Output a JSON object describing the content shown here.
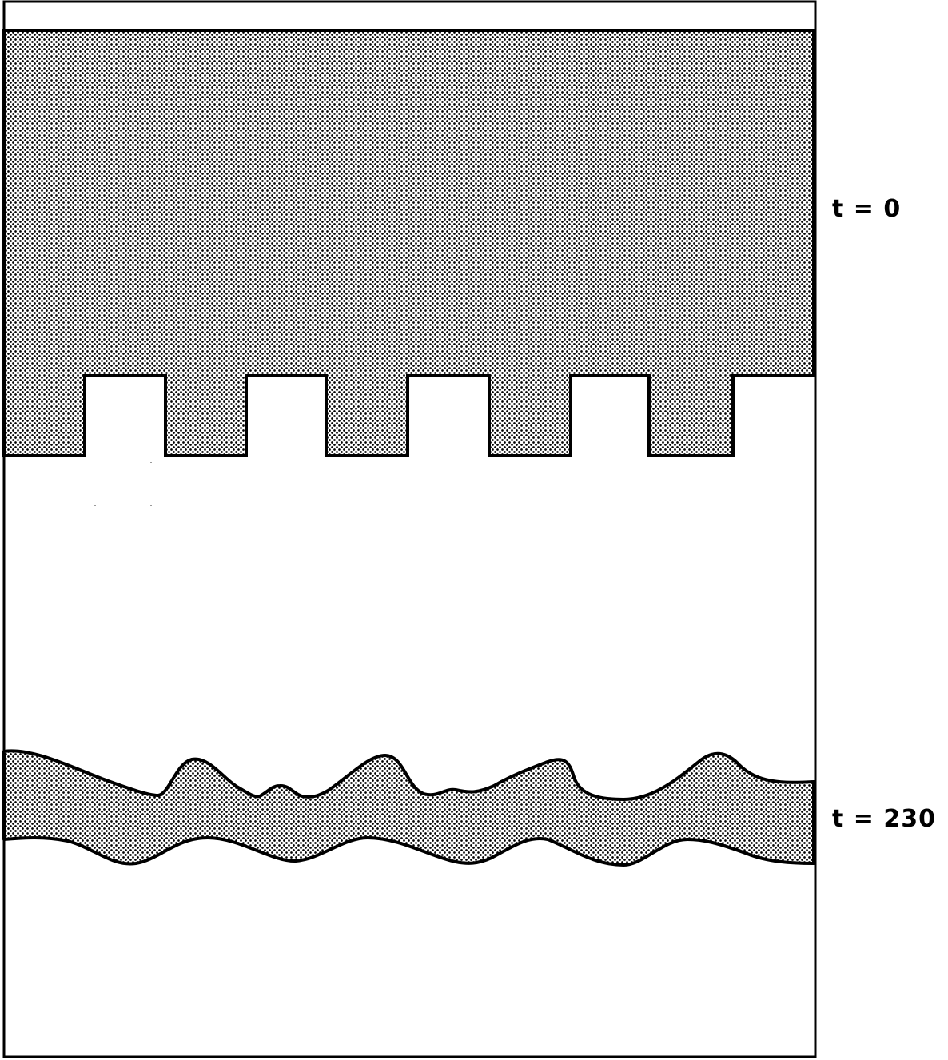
{
  "panels": [
    {
      "time_label": "t = 0"
    },
    {
      "time_label": "t = 230"
    }
  ],
  "colors": {
    "outline": "#000000",
    "fill_pattern_dot": "#000000",
    "fill_pattern_bg": "#ffffff",
    "background": "#ffffff"
  }
}
